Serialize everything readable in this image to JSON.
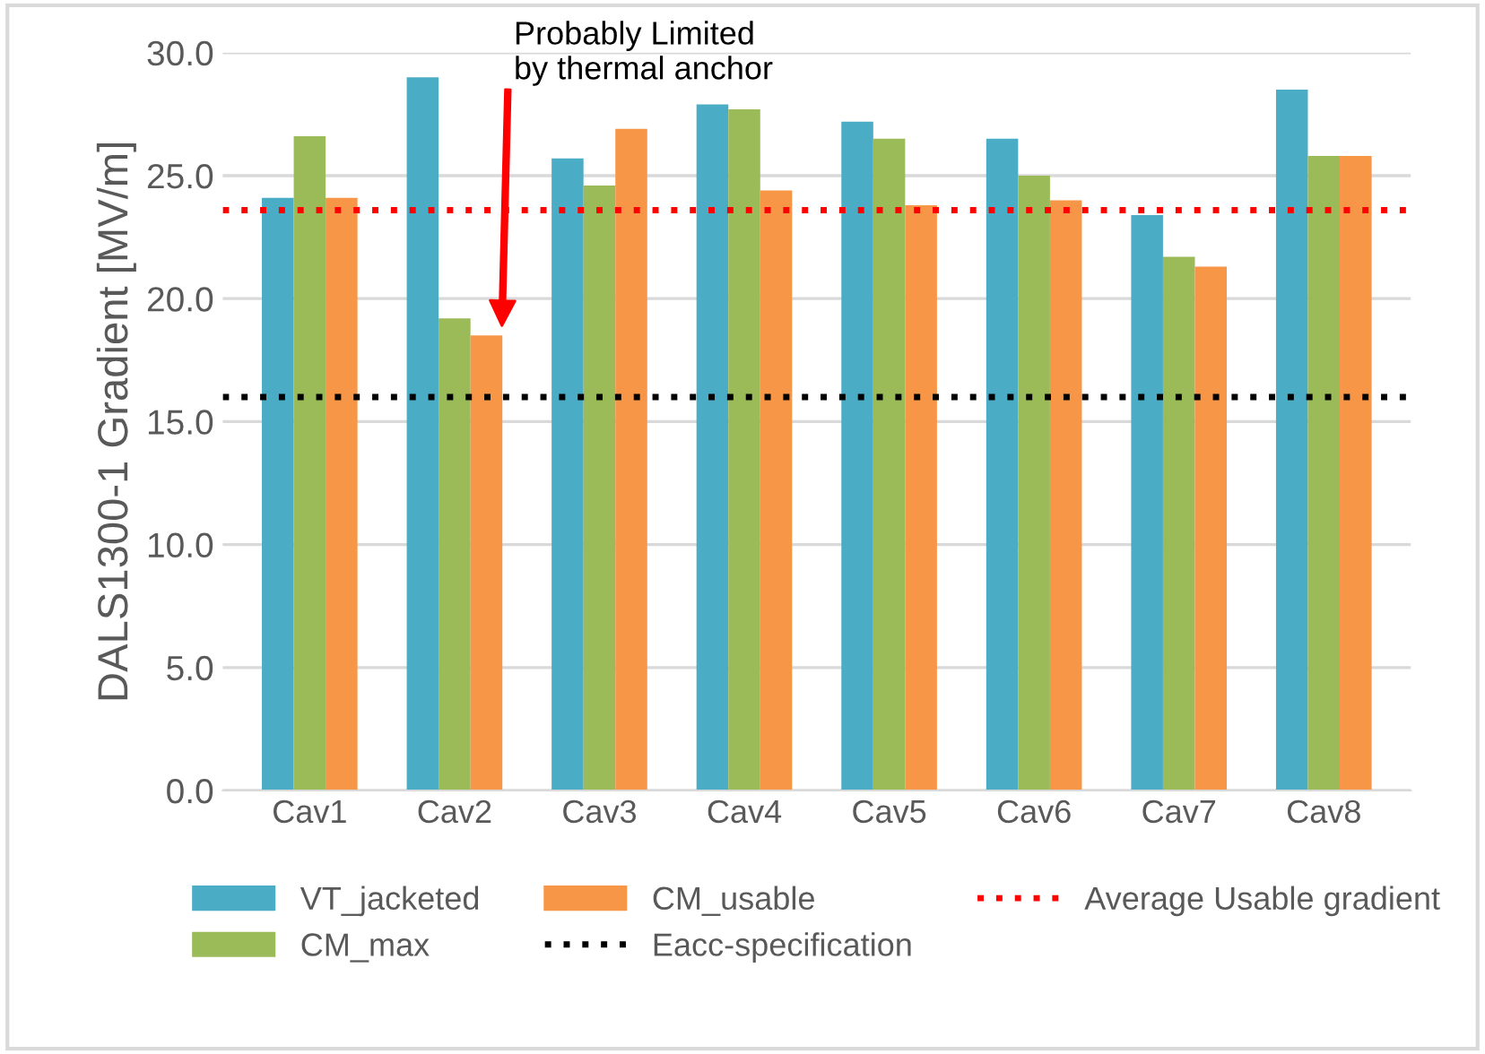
{
  "chart_data": {
    "type": "bar",
    "ylabel": "DALS1300-1 Gradient [MV/m]",
    "categories": [
      "Cav1",
      "Cav2",
      "Cav3",
      "Cav4",
      "Cav5",
      "Cav6",
      "Cav7",
      "Cav8"
    ],
    "series": [
      {
        "name": "VT_jacketed",
        "color": "#4bacc6",
        "values": [
          24.1,
          29.0,
          25.7,
          27.9,
          27.2,
          26.5,
          23.4,
          28.5
        ]
      },
      {
        "name": "CM_max",
        "color": "#9bbb59",
        "values": [
          26.6,
          19.2,
          24.6,
          27.7,
          26.5,
          25.0,
          21.7,
          25.8
        ]
      },
      {
        "name": "CM_usable",
        "color": "#f79646",
        "values": [
          24.1,
          18.5,
          26.9,
          24.4,
          23.8,
          24.0,
          21.3,
          25.8
        ]
      }
    ],
    "ref_lines": [
      {
        "axis": "y",
        "value": 16.0,
        "label": "Eacc-specification",
        "color": "#000000",
        "line_style": "dotted"
      },
      {
        "axis": "y",
        "value": 23.6,
        "label": "Average Usable gradient",
        "color": "#ff0000",
        "line_style": "dotted"
      }
    ],
    "annotations": [
      "Probably Limited\nby thermal anchor"
    ],
    "ylim": [
      0,
      30
    ],
    "yticks": [
      {
        "value": 0,
        "label": "0.0"
      },
      {
        "value": 5,
        "label": "5.0"
      },
      {
        "value": 10,
        "label": "10.0"
      },
      {
        "value": 15,
        "label": "15.0"
      },
      {
        "value": 20,
        "label": "20.0"
      },
      {
        "value": 25,
        "label": "25.0"
      },
      {
        "value": 30,
        "label": "30.0"
      }
    ],
    "grid": "y",
    "legend": "bottom"
  }
}
